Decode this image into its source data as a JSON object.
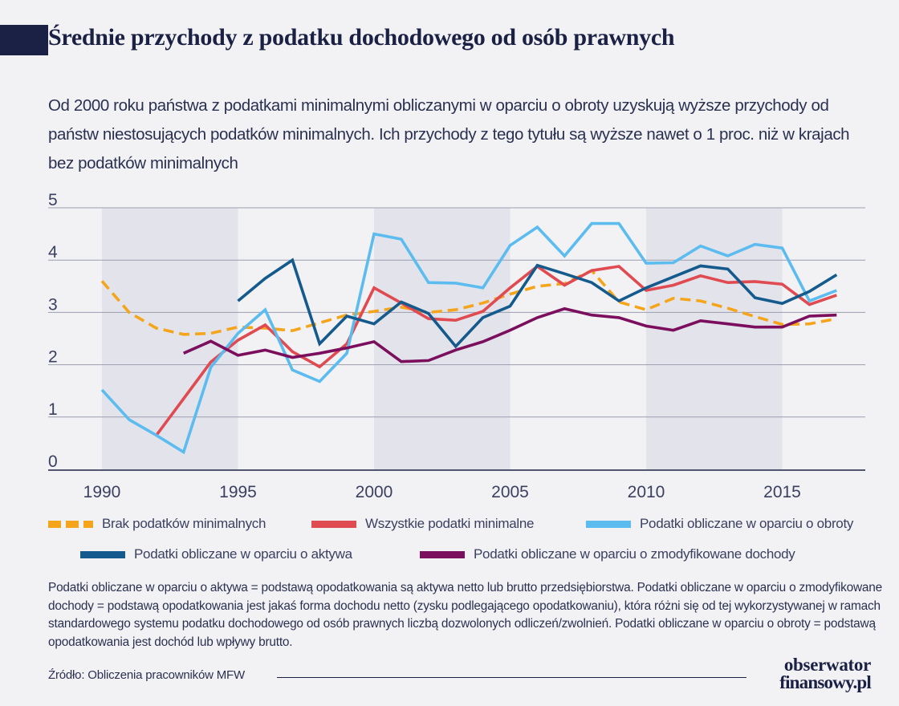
{
  "title": "Średnie przychody z podatku dochodowego od osób prawnych",
  "subtitle": "Od 2000 roku państwa z podatkami minimalnymi obliczanymi w oparciu o obroty uzyskują wyższe przychody od państw niestosujących podatków minimalnych. Ich przychody z tego tytułu są wyższe nawet o 1 proc. niż w krajach bez podatków minimalnych",
  "chart_data": {
    "type": "line",
    "x_ticks": [
      "1990",
      "1995",
      "2000",
      "2005",
      "2010",
      "2015"
    ],
    "y_ticks": [
      "0",
      "1",
      "2",
      "3",
      "4",
      "5"
    ],
    "xlim": [
      1990,
      2018
    ],
    "ylim": [
      0,
      5
    ],
    "grid": "horizontal",
    "shaded_periods": [
      [
        1990,
        1995
      ],
      [
        2000,
        2005
      ],
      [
        2010,
        2015
      ]
    ],
    "shading_color": "#e3e4eb",
    "series": [
      {
        "name": "Brak podatków minimalnych",
        "color": "#f5a51b",
        "style": "dashed",
        "points": [
          [
            1990,
            3.6
          ],
          [
            1991,
            3.0
          ],
          [
            1992,
            2.7
          ],
          [
            1993,
            2.58
          ],
          [
            1994,
            2.6
          ],
          [
            1995,
            2.72
          ],
          [
            1996,
            2.7
          ],
          [
            1997,
            2.65
          ],
          [
            1998,
            2.8
          ],
          [
            1999,
            2.95
          ],
          [
            2000,
            3.02
          ],
          [
            2001,
            3.1
          ],
          [
            2002,
            3.0
          ],
          [
            2003,
            3.05
          ],
          [
            2004,
            3.18
          ],
          [
            2005,
            3.35
          ],
          [
            2006,
            3.5
          ],
          [
            2007,
            3.55
          ],
          [
            2008,
            3.8
          ],
          [
            2009,
            3.2
          ],
          [
            2010,
            3.05
          ],
          [
            2011,
            3.27
          ],
          [
            2012,
            3.22
          ],
          [
            2013,
            3.08
          ],
          [
            2014,
            2.92
          ],
          [
            2015,
            2.77
          ],
          [
            2016,
            2.78
          ],
          [
            2017,
            2.88
          ]
        ]
      },
      {
        "name": "Wszystkie podatki minimalne",
        "color": "#e04a51",
        "style": "solid",
        "points": [
          [
            1992,
            0.65
          ],
          [
            1993,
            1.35
          ],
          [
            1994,
            2.05
          ],
          [
            1995,
            2.47
          ],
          [
            1996,
            2.76
          ],
          [
            1997,
            2.25
          ],
          [
            1998,
            1.96
          ],
          [
            1999,
            2.4
          ],
          [
            2000,
            3.47
          ],
          [
            2001,
            3.18
          ],
          [
            2002,
            2.88
          ],
          [
            2003,
            2.85
          ],
          [
            2004,
            3.02
          ],
          [
            2005,
            3.47
          ],
          [
            2006,
            3.88
          ],
          [
            2007,
            3.52
          ],
          [
            2008,
            3.8
          ],
          [
            2009,
            3.88
          ],
          [
            2010,
            3.42
          ],
          [
            2011,
            3.52
          ],
          [
            2012,
            3.7
          ],
          [
            2013,
            3.57
          ],
          [
            2014,
            3.59
          ],
          [
            2015,
            3.54
          ],
          [
            2016,
            3.15
          ],
          [
            2017,
            3.33
          ]
        ]
      },
      {
        "name": "Podatki obliczane w oparciu o obroty",
        "color": "#5cbcef",
        "style": "solid",
        "points": [
          [
            1990,
            1.52
          ],
          [
            1991,
            0.95
          ],
          [
            1992,
            0.65
          ],
          [
            1993,
            0.33
          ],
          [
            1994,
            1.95
          ],
          [
            1995,
            2.6
          ],
          [
            1996,
            3.05
          ],
          [
            1997,
            1.9
          ],
          [
            1998,
            1.68
          ],
          [
            1999,
            2.22
          ],
          [
            2000,
            4.5
          ],
          [
            2001,
            4.4
          ],
          [
            2002,
            3.57
          ],
          [
            2003,
            3.56
          ],
          [
            2004,
            3.47
          ],
          [
            2005,
            4.28
          ],
          [
            2006,
            4.63
          ],
          [
            2007,
            4.08
          ],
          [
            2008,
            4.7
          ],
          [
            2009,
            4.7
          ],
          [
            2010,
            3.94
          ],
          [
            2011,
            3.95
          ],
          [
            2012,
            4.27
          ],
          [
            2013,
            4.08
          ],
          [
            2014,
            4.3
          ],
          [
            2015,
            4.23
          ],
          [
            2016,
            3.22
          ],
          [
            2017,
            3.42
          ]
        ]
      },
      {
        "name": "Podatki obliczane w oparciu o aktywa",
        "color": "#145a8c",
        "style": "solid",
        "points": [
          [
            1995,
            3.22
          ],
          [
            1996,
            3.65
          ],
          [
            1997,
            4.0
          ],
          [
            1998,
            2.4
          ],
          [
            1999,
            2.93
          ],
          [
            2000,
            2.78
          ],
          [
            2001,
            3.2
          ],
          [
            2002,
            2.98
          ],
          [
            2003,
            2.35
          ],
          [
            2004,
            2.9
          ],
          [
            2005,
            3.12
          ],
          [
            2006,
            3.9
          ],
          [
            2007,
            3.74
          ],
          [
            2008,
            3.57
          ],
          [
            2009,
            3.22
          ],
          [
            2010,
            3.47
          ],
          [
            2011,
            3.68
          ],
          [
            2012,
            3.89
          ],
          [
            2013,
            3.83
          ],
          [
            2014,
            3.28
          ],
          [
            2015,
            3.17
          ],
          [
            2016,
            3.4
          ],
          [
            2017,
            3.72
          ]
        ]
      },
      {
        "name": "Podatki obliczane w oparciu o zmodyfikowane dochody",
        "color": "#7b0f5e",
        "style": "solid",
        "points": [
          [
            1993,
            2.22
          ],
          [
            1994,
            2.45
          ],
          [
            1995,
            2.18
          ],
          [
            1996,
            2.28
          ],
          [
            1997,
            2.14
          ],
          [
            1998,
            2.22
          ],
          [
            1999,
            2.32
          ],
          [
            2000,
            2.44
          ],
          [
            2001,
            2.06
          ],
          [
            2002,
            2.08
          ],
          [
            2003,
            2.28
          ],
          [
            2004,
            2.44
          ],
          [
            2005,
            2.66
          ],
          [
            2006,
            2.9
          ],
          [
            2007,
            3.07
          ],
          [
            2008,
            2.95
          ],
          [
            2009,
            2.9
          ],
          [
            2010,
            2.74
          ],
          [
            2011,
            2.66
          ],
          [
            2012,
            2.84
          ],
          [
            2013,
            2.78
          ],
          [
            2014,
            2.72
          ],
          [
            2015,
            2.72
          ],
          [
            2016,
            2.93
          ],
          [
            2017,
            2.95
          ]
        ]
      }
    ]
  },
  "legend": {
    "row1": [
      "Brak podatków minimalnych",
      "Wszystkie podatki minimalne",
      "Podatki obliczane w oparciu o obroty"
    ],
    "row2": [
      "Podatki obliczane w oparciu o aktywa",
      "Podatki obliczane w oparciu o zmodyfikowane dochody"
    ]
  },
  "notes": "Podatki obliczane w oparciu o aktywa = podstawą opodatkowania są aktywa netto lub brutto przedsiębiorstwa. Podatki obliczane w oparciu o zmodyfikowane dochody = podstawą opodatkowania jest jakaś forma dochodu netto (zysku podlegającego opodatkowaniu), która różni się od tej wykorzystywanej w ramach standardowego systemu podatku dochodowego od osób prawnych liczbą dozwolonych odliczeń/zwolnień. Podatki obliczane w oparciu o obroty = podstawą opodatkowania jest dochód lub wpływy brutto.",
  "source": "Źródło: Obliczenia pracowników MFW",
  "logo": {
    "line1": "obserwator",
    "line2": "finansowy.pl"
  }
}
